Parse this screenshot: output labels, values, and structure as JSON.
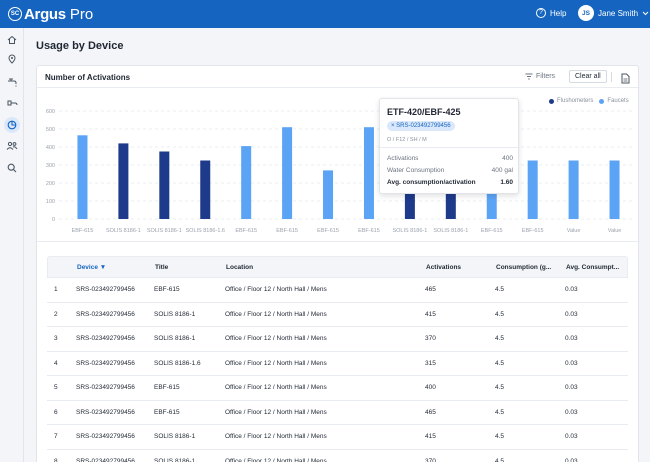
{
  "app": {
    "logo_badge": "SC",
    "name": "Argus",
    "edition": "Pro",
    "brand_color": "#1565c0"
  },
  "header": {
    "help_label": "Help",
    "user_initials": "JS",
    "user_name": "Jane Smith"
  },
  "sidebar": {
    "items": [
      {
        "icon": "home-icon"
      },
      {
        "icon": "location-pin-icon"
      },
      {
        "icon": "faucet-icon"
      },
      {
        "icon": "flush-icon"
      },
      {
        "icon": "usage-chart-icon",
        "active": true
      },
      {
        "icon": "users-icon"
      },
      {
        "icon": "search-icon"
      }
    ]
  },
  "page": {
    "title": "Usage by Device"
  },
  "card": {
    "title": "Number of Activations",
    "filters_label": "Filters",
    "clear_label": "Clear all"
  },
  "chart_data": {
    "type": "bar",
    "ylim": [
      0,
      600
    ],
    "yticks": [
      "600",
      "500",
      "400",
      "300",
      "200",
      "100",
      "0"
    ],
    "categories": [
      "EBF-615",
      "SOLIS 8186-1",
      "SOLIS 8186-1",
      "SOLIS 8186-1.6",
      "EBF-615",
      "EBF-615",
      "EBF-615",
      "EBF-615",
      "SOLIS 8186-1",
      "SOLIS 8186-1",
      "EBF-615",
      "EBF-615",
      "Value",
      "Value"
    ],
    "values": [
      465,
      420,
      375,
      325,
      405,
      510,
      270,
      510,
      400,
      400,
      400,
      325,
      325,
      325
    ],
    "types": [
      "Faucets",
      "Flushometers",
      "Flushometers",
      "Flushometers",
      "Faucets",
      "Faucets",
      "Faucets",
      "Faucets",
      "Flushometers",
      "Flushometers",
      "Faucets",
      "Faucets",
      "Faucets",
      "Faucets"
    ],
    "legend": [
      {
        "name": "Flushometers",
        "color": "#1e3a8a"
      },
      {
        "name": "Faucets",
        "color": "#5ba3f5"
      }
    ],
    "grid": true,
    "legend_position": "top-right"
  },
  "tooltip": {
    "title": "ETF-420/EBF-425",
    "chip": "× SRS-023492799456",
    "subtitle": "O / F12 / SH / M",
    "rows": [
      {
        "label": "Activations",
        "value": "400"
      },
      {
        "label": "Water Consumption",
        "value": "400 gal"
      },
      {
        "label": "Avg. consumption/activation",
        "value": "1.60"
      }
    ]
  },
  "table": {
    "headers": [
      "Device ▼",
      "Title",
      "Location",
      "Activations",
      "Consumption (g...",
      "Avg. Consumpt..."
    ],
    "rows": [
      {
        "n": "1",
        "device": "SRS-023492799456",
        "title": "EBF-615",
        "location": "Office / Floor 12 / North Hall / Mens",
        "activations": "465",
        "consumption": "4.5",
        "avg": "0.03"
      },
      {
        "n": "2",
        "device": "SRS-023492799456",
        "title": "SOLIS 8186-1",
        "location": "Office / Floor 12 / North Hall / Mens",
        "activations": "415",
        "consumption": "4.5",
        "avg": "0.03"
      },
      {
        "n": "3",
        "device": "SRS-023492799456",
        "title": "SOLIS 8186-1",
        "location": "Office / Floor 12 / North Hall / Mens",
        "activations": "370",
        "consumption": "4.5",
        "avg": "0.03"
      },
      {
        "n": "4",
        "device": "SRS-023492799456",
        "title": "SOLIS 8186-1.6",
        "location": "Office / Floor 12 / North Hall / Mens",
        "activations": "315",
        "consumption": "4.5",
        "avg": "0.03"
      },
      {
        "n": "5",
        "device": "SRS-023492799456",
        "title": "EBF-615",
        "location": "Office / Floor 12 / North Hall / Mens",
        "activations": "400",
        "consumption": "4.5",
        "avg": "0.03"
      },
      {
        "n": "6",
        "device": "SRS-023492799456",
        "title": "EBF-615",
        "location": "Office / Floor 12 / North Hall / Mens",
        "activations": "465",
        "consumption": "4.5",
        "avg": "0.03"
      },
      {
        "n": "7",
        "device": "SRS-023492799456",
        "title": "SOLIS 8186-1",
        "location": "Office / Floor 12 / North Hall / Mens",
        "activations": "415",
        "consumption": "4.5",
        "avg": "0.03"
      },
      {
        "n": "8",
        "device": "SRS-023492799456",
        "title": "SOLIS 8186-1",
        "location": "Office / Floor 12 / North Hall / Mens",
        "activations": "370",
        "consumption": "4.5",
        "avg": "0.03"
      }
    ]
  }
}
